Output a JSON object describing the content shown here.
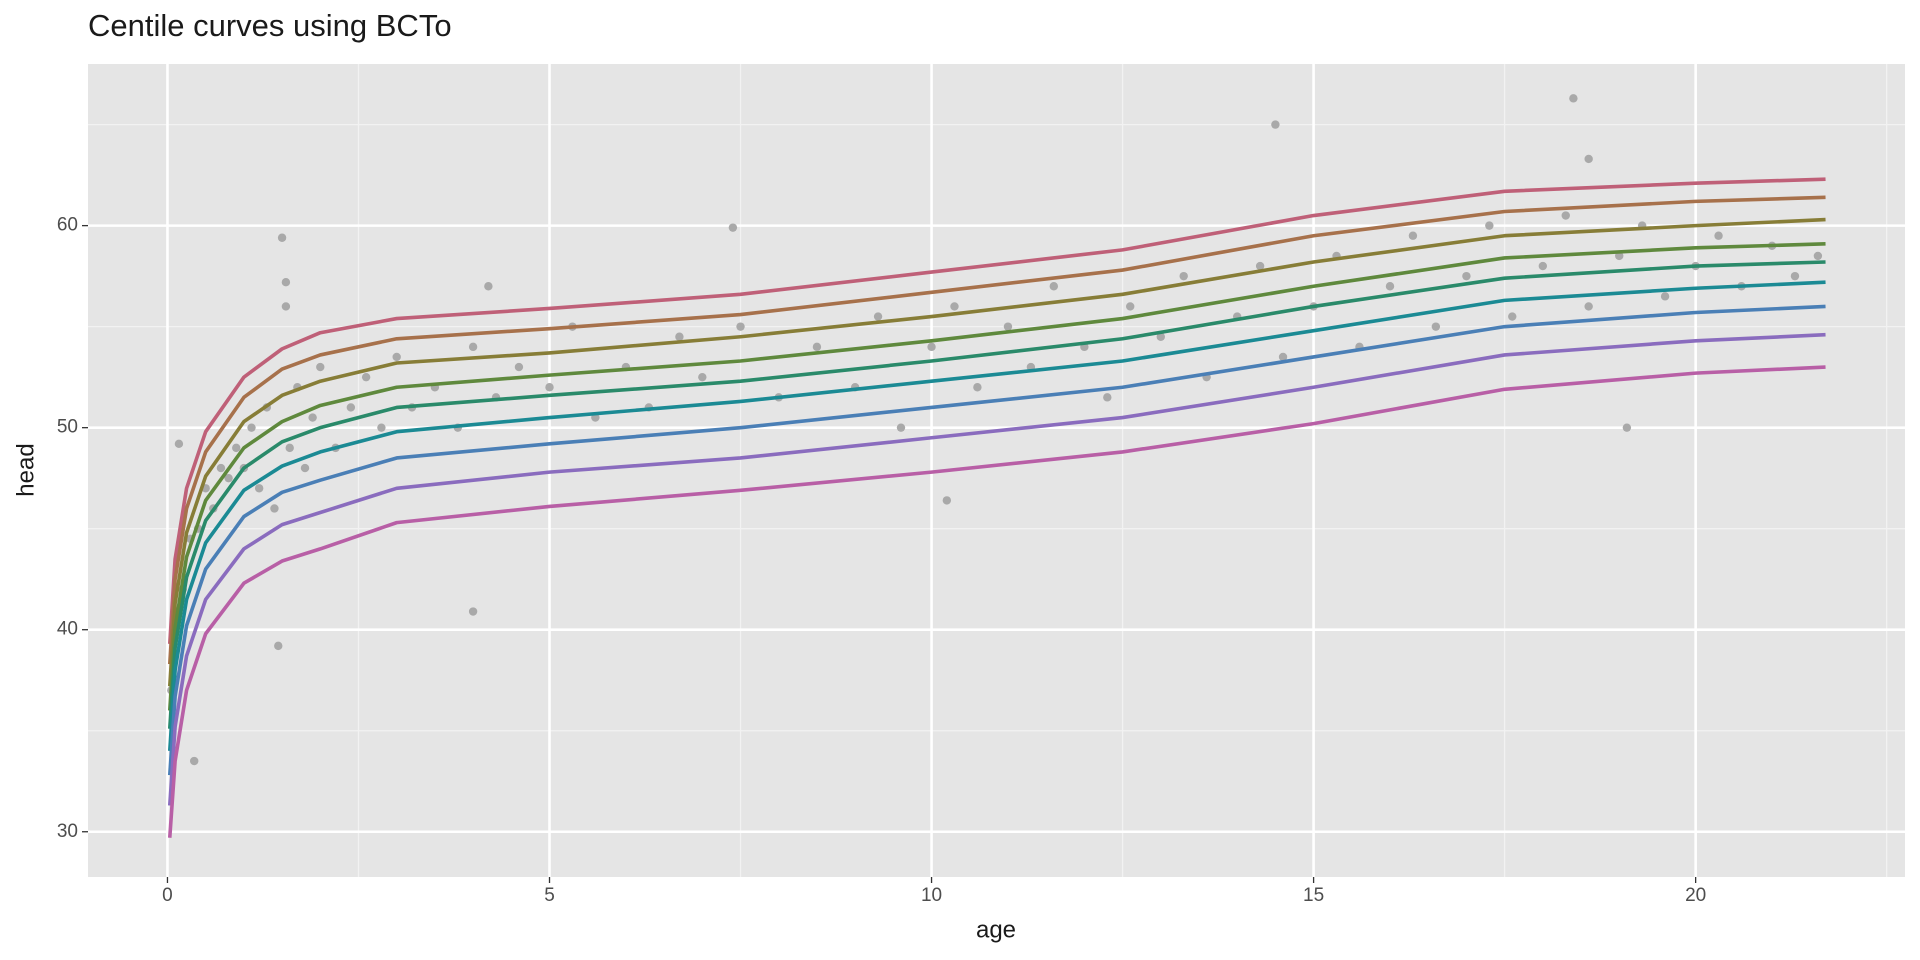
{
  "chart_data": {
    "type": "line",
    "title": "Centile curves using BCTo",
    "xlabel": "age",
    "ylabel": "head",
    "xlim": [
      -1.04,
      22.74
    ],
    "ylim": [
      27.76,
      68.0
    ],
    "xticks": [
      0,
      5,
      10,
      15,
      20
    ],
    "yticks": [
      30,
      40,
      50,
      60
    ],
    "grid": true,
    "minor_grid": true,
    "background": "#e5e5e5",
    "x": [
      0.03,
      0.1,
      0.25,
      0.5,
      1,
      1.5,
      2,
      3,
      5,
      7.5,
      10,
      12.5,
      15,
      17.5,
      20,
      21.7
    ],
    "series": [
      {
        "color": "#bf6078",
        "values": [
          39.3,
          43.5,
          47.0,
          49.8,
          52.5,
          53.9,
          54.7,
          55.4,
          55.9,
          56.6,
          57.7,
          58.8,
          60.5,
          61.7,
          62.1,
          62.3
        ]
      },
      {
        "color": "#a7714b",
        "values": [
          38.3,
          42.5,
          46.0,
          48.8,
          51.5,
          52.9,
          53.6,
          54.4,
          54.9,
          55.6,
          56.7,
          57.8,
          59.5,
          60.7,
          61.2,
          61.4
        ]
      },
      {
        "color": "#877d37",
        "values": [
          37.2,
          41.3,
          44.8,
          47.6,
          50.3,
          51.6,
          52.3,
          53.2,
          53.7,
          54.5,
          55.5,
          56.6,
          58.2,
          59.5,
          60.0,
          60.3
        ]
      },
      {
        "color": "#5f893d",
        "values": [
          36.0,
          40.1,
          43.6,
          46.4,
          49.0,
          50.3,
          51.1,
          52.0,
          52.6,
          53.3,
          54.3,
          55.4,
          57.0,
          58.4,
          58.9,
          59.1
        ]
      },
      {
        "color": "#2a8a6a",
        "values": [
          35.1,
          39.1,
          42.6,
          45.4,
          48.0,
          49.3,
          50.0,
          51.0,
          51.6,
          52.3,
          53.3,
          54.4,
          56.0,
          57.4,
          58.0,
          58.2
        ]
      },
      {
        "color": "#1b8a94",
        "values": [
          34.0,
          38.0,
          41.5,
          44.3,
          46.9,
          48.1,
          48.8,
          49.8,
          50.5,
          51.3,
          52.3,
          53.3,
          54.8,
          56.3,
          56.9,
          57.2
        ]
      },
      {
        "color": "#4a7fb6",
        "values": [
          32.8,
          36.7,
          40.2,
          43.0,
          45.6,
          46.8,
          47.4,
          48.5,
          49.2,
          50.0,
          51.0,
          52.0,
          53.5,
          55.0,
          55.7,
          56.0
        ]
      },
      {
        "color": "#8a6cbe",
        "values": [
          31.3,
          35.2,
          38.7,
          41.5,
          44.0,
          45.2,
          45.8,
          47.0,
          47.8,
          48.5,
          49.5,
          50.5,
          52.0,
          53.6,
          54.3,
          54.6
        ]
      },
      {
        "color": "#b85fa6",
        "values": [
          29.7,
          33.5,
          37.0,
          39.8,
          42.3,
          43.4,
          44.0,
          45.3,
          46.1,
          46.9,
          47.8,
          48.8,
          50.2,
          51.9,
          52.7,
          53.0
        ]
      }
    ],
    "points": {
      "color": "#a9a9a9",
      "x": [
        1.5,
        1.55,
        1.55,
        7.4,
        4.0,
        1.45,
        14.5,
        18.4,
        18.6,
        0.35,
        19.1,
        10.2,
        4.2,
        0.15,
        0.05,
        0.1,
        0.2,
        0.3,
        0.4,
        0.5,
        0.6,
        0.7,
        0.8,
        0.9,
        1.0,
        1.1,
        1.2,
        1.3,
        1.4,
        1.6,
        1.7,
        1.8,
        1.9,
        2.0,
        2.2,
        2.4,
        2.6,
        2.8,
        3.0,
        3.2,
        3.5,
        3.8,
        4.0,
        4.3,
        4.6,
        5.0,
        5.3,
        5.6,
        6.0,
        6.3,
        6.7,
        7.0,
        7.5,
        8.0,
        8.5,
        9.0,
        9.3,
        9.6,
        10.0,
        10.3,
        10.6,
        11.0,
        11.3,
        11.6,
        12.0,
        12.3,
        12.6,
        13.0,
        13.3,
        13.6,
        14.0,
        14.3,
        14.6,
        15.0,
        15.3,
        15.6,
        16.0,
        16.3,
        16.6,
        17.0,
        17.3,
        17.6,
        18.0,
        18.3,
        18.6,
        19.0,
        19.3,
        19.6,
        20.0,
        20.3,
        20.6,
        21.0,
        21.3,
        21.6
      ],
      "y": [
        59.4,
        57.2,
        56.0,
        59.9,
        40.9,
        39.2,
        65.0,
        66.3,
        63.3,
        33.5,
        50.0,
        46.4,
        57.0,
        49.2,
        37,
        40,
        42,
        44.5,
        45,
        47,
        46,
        48,
        47.5,
        49,
        48,
        50,
        47,
        51,
        46,
        49,
        52,
        48,
        50.5,
        53,
        49,
        51,
        52.5,
        50,
        53.5,
        51,
        52,
        50,
        54,
        51.5,
        53,
        52,
        55,
        50.5,
        53,
        51,
        54.5,
        52.5,
        55,
        51.5,
        54,
        52,
        55.5,
        50,
        54,
        56,
        52,
        55,
        53,
        57,
        54,
        51.5,
        56,
        54.5,
        57.5,
        52.5,
        55.5,
        58,
        53.5,
        56,
        58.5,
        54,
        57,
        59.5,
        55,
        57.5,
        60,
        55.5,
        58,
        60.5,
        56,
        58.5,
        60,
        56.5,
        58,
        59.5,
        57,
        59,
        57.5,
        58.5
      ]
    }
  }
}
